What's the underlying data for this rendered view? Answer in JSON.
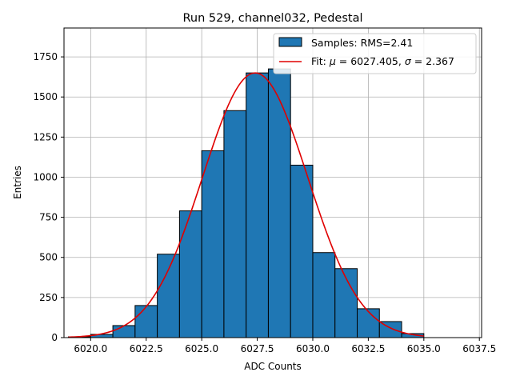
{
  "chart_data": {
    "type": "bar",
    "title": "Run 529, channel032, Pedestal",
    "xlabel": "ADC Counts",
    "ylabel": "Entries",
    "xlim": [
      6018.8,
      6037.6
    ],
    "ylim": [
      0,
      1930
    ],
    "grid": true,
    "legend_placement": "top-right",
    "bar_color": "#1f77b4",
    "fit_color": "#e00000",
    "xticks": [
      6020.0,
      6022.5,
      6025.0,
      6027.5,
      6030.0,
      6032.5,
      6035.0,
      6037.5
    ],
    "xtick_labels": [
      "6020.0",
      "6022.5",
      "6025.0",
      "6027.5",
      "6030.0",
      "6032.5",
      "6035.0",
      "6037.5"
    ],
    "yticks": [
      0,
      250,
      500,
      750,
      1000,
      1250,
      1500,
      1750
    ],
    "ytick_labels": [
      "0",
      "250",
      "500",
      "750",
      "1000",
      "1250",
      "1500",
      "1750"
    ],
    "histogram": {
      "name": "Samples: RMS=2.41",
      "bin_edges": [
        6019,
        6020,
        6021,
        6022,
        6023,
        6024,
        6025,
        6026,
        6027,
        6028,
        6029,
        6030,
        6031,
        6032,
        6033,
        6034,
        6035
      ],
      "counts": [
        5,
        20,
        75,
        200,
        520,
        790,
        1165,
        1415,
        1650,
        1675,
        1075,
        530,
        430,
        180,
        100,
        25
      ]
    },
    "fit": {
      "name_prefix": "Fit: ",
      "name_mu_symbol": "μ",
      "name_mu_value": " = 6027.405, ",
      "name_sigma_symbol": "σ",
      "name_sigma_value": " = 2.367",
      "mu": 6027.405,
      "sigma": 2.367,
      "amplitude": 1650,
      "x_range": [
        6019,
        6035
      ]
    }
  }
}
